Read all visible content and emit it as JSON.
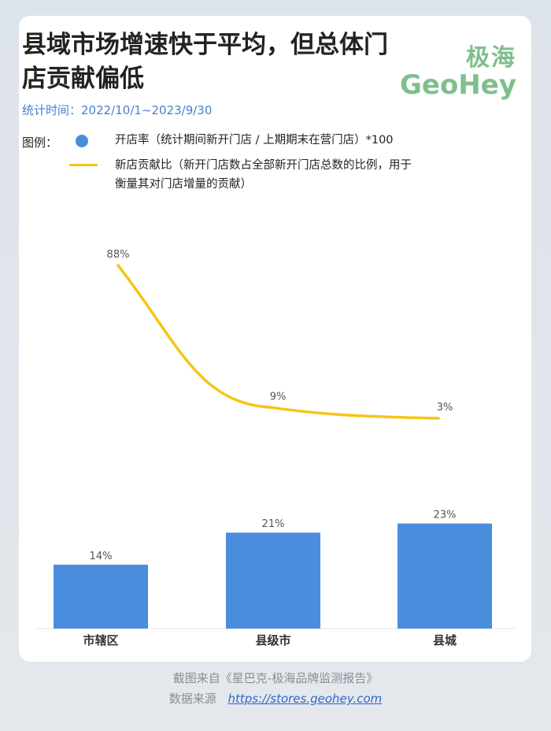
{
  "title": "县域市场增速快于平均，但总体门店贡献偏低",
  "brand": {
    "cn": "极海",
    "en": "GeoHey"
  },
  "subtitle": "统计时间：2022/10/1~2023/9/30",
  "legend": {
    "label": "图例：",
    "bar_text": "开店率（统计期间新开门店 / 上期期末在营门店）*100",
    "line_text_1": "新店贡献比（新开门店数占全部新开门店总数的比例，用于",
    "line_text_2": "衡量其对门店增量的贡献）"
  },
  "colors": {
    "bar": "#4a8ddd",
    "line": "#f5c518",
    "brand": "#7fbf8c",
    "subtitle": "#4a7fcf"
  },
  "chart_data": {
    "type": "bar",
    "categories": [
      "市辖区",
      "县级市",
      "县城"
    ],
    "series": [
      {
        "values": [
          14,
          21,
          23
        ],
        "labels": [
          "14%",
          "21%",
          "23%"
        ]
      },
      {
        "values": [
          88,
          9,
          3
        ],
        "labels": [
          "88%",
          "9%",
          "3%"
        ]
      }
    ],
    "legend_position": "top-left",
    "grid": false
  },
  "footer": {
    "source_note": "截图来自《星巴克-极海品牌监测报告》",
    "data_label": "数据来源",
    "data_link": "https://stores.geohey.com"
  }
}
